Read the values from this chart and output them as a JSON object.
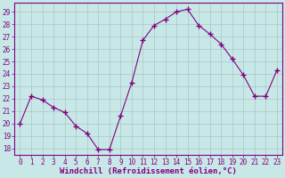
{
  "x": [
    0,
    1,
    2,
    3,
    4,
    5,
    6,
    7,
    8,
    9,
    10,
    11,
    12,
    13,
    14,
    15,
    16,
    17,
    18,
    19,
    20,
    21,
    22,
    23
  ],
  "y": [
    20,
    22.2,
    21.9,
    21.3,
    20.9,
    19.8,
    19.2,
    17.9,
    17.9,
    20.6,
    23.3,
    26.7,
    27.9,
    28.4,
    29.0,
    29.2,
    27.9,
    27.2,
    26.4,
    25.2,
    23.9,
    22.2,
    22.2,
    24.3
  ],
  "line_color": "#800080",
  "marker": "+",
  "marker_size": 4,
  "marker_linewidth": 1.0,
  "bg_color": "#c8e8e8",
  "grid_color": "#a8c8c8",
  "xlabel": "Windchill (Refroidissement éolien,°C)",
  "ylim": [
    17.5,
    29.75
  ],
  "xlim": [
    -0.5,
    23.5
  ],
  "yticks": [
    18,
    19,
    20,
    21,
    22,
    23,
    24,
    25,
    26,
    27,
    28,
    29
  ],
  "xticks": [
    0,
    1,
    2,
    3,
    4,
    5,
    6,
    7,
    8,
    9,
    10,
    11,
    12,
    13,
    14,
    15,
    16,
    17,
    18,
    19,
    20,
    21,
    22,
    23
  ],
  "tick_color": "#800080",
  "label_fontsize": 6.5,
  "tick_fontsize": 5.5
}
